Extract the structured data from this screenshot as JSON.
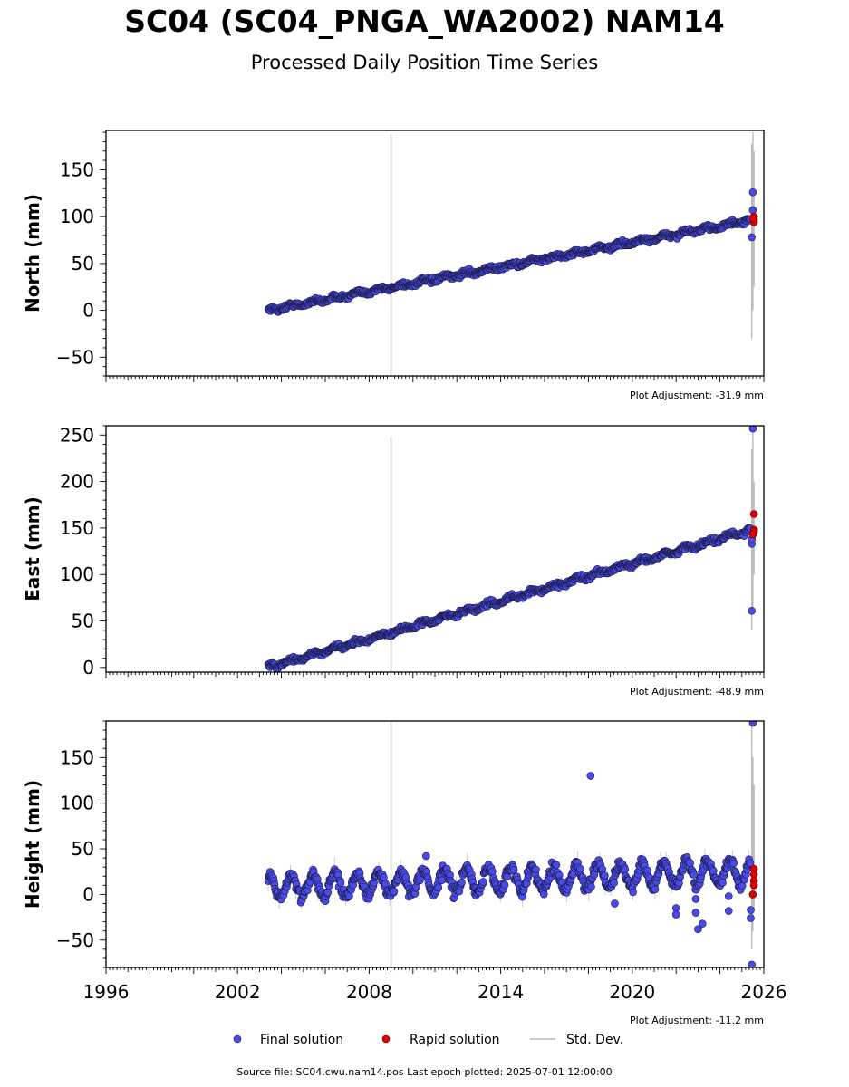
{
  "title": "SC04 (SC04_PNGA_WA2002) NAM14",
  "subtitle": "Processed Daily Position Time Series",
  "footer": "Source file: SC04.cwu.nam14.pos  Last epoch plotted: 2025-07-01 12:00:00",
  "colors": {
    "final": "#4a4ae8",
    "rapid": "#e00000",
    "stddev": "#cccccc",
    "edge": "#1a1a40"
  },
  "legend": {
    "final": "Final solution",
    "rapid": "Rapid solution",
    "stddev": "Std. Dev."
  },
  "chart_data": [
    {
      "type": "scatter",
      "id": "north",
      "ylabel": "North (mm)",
      "adjustment": "Plot Adjustment: -31.9 mm",
      "xlim": [
        1996.0,
        2026.0
      ],
      "ylim": [
        -70,
        192
      ],
      "yticks": [
        -50,
        0,
        50,
        100,
        150
      ],
      "trend": {
        "start": [
          2003.4,
          0
        ],
        "end": [
          2025.4,
          96
        ]
      },
      "seasonal_amp": 1.5,
      "noise": 2.5,
      "spike": {
        "x": 2009.0,
        "y0": -70,
        "y1": 188
      },
      "outliers": [
        [
          2025.5,
          126
        ],
        [
          2025.5,
          107
        ],
        [
          2025.45,
          78
        ]
      ],
      "rapid": [
        [
          2025.55,
          100
        ],
        [
          2025.55,
          97
        ],
        [
          2025.55,
          94
        ],
        [
          2025.5,
          98
        ]
      ],
      "end_stddev": [
        [
          2025.45,
          -30,
          178
        ],
        [
          2025.5,
          0,
          190
        ],
        [
          2025.55,
          25,
          170
        ]
      ]
    },
    {
      "type": "scatter",
      "id": "east",
      "ylabel": "East (mm)",
      "adjustment": "Plot Adjustment: -48.9 mm",
      "xlim": [
        1996.0,
        2026.0
      ],
      "ylim": [
        -5,
        260
      ],
      "yticks": [
        0,
        50,
        100,
        150,
        200,
        250
      ],
      "trend": {
        "start": [
          2003.4,
          0
        ],
        "end": [
          2025.4,
          148
        ]
      },
      "seasonal_amp": 1.8,
      "noise": 2.5,
      "spike": {
        "x": 2009.0,
        "y0": -5,
        "y1": 248
      },
      "outliers": [
        [
          2025.5,
          257
        ],
        [
          2025.45,
          61
        ],
        [
          2025.45,
          133
        ],
        [
          2025.45,
          138
        ]
      ],
      "rapid": [
        [
          2025.55,
          165
        ],
        [
          2025.55,
          148
        ],
        [
          2025.55,
          146
        ],
        [
          2025.5,
          143
        ]
      ],
      "end_stddev": [
        [
          2025.45,
          40,
          235
        ],
        [
          2025.5,
          60,
          255
        ],
        [
          2025.55,
          100,
          200
        ]
      ]
    },
    {
      "type": "scatter",
      "id": "height",
      "ylabel": "Height (mm)",
      "adjustment": "Plot Adjustment: -11.2 mm",
      "xlim": [
        1996.0,
        2026.0
      ],
      "ylim": [
        -80,
        190
      ],
      "yticks": [
        -50,
        0,
        50,
        100,
        150
      ],
      "xticks": [
        1996,
        2002,
        2008,
        2014,
        2020,
        2026
      ],
      "trend": {
        "start": [
          2003.4,
          8
        ],
        "end": [
          2025.4,
          25
        ]
      },
      "seasonal_amp": 13,
      "noise": 6,
      "spike": {
        "x": 2009.0,
        "y0": -80,
        "y1": 190
      },
      "outliers": [
        [
          2018.1,
          130
        ],
        [
          2010.6,
          42
        ],
        [
          2019.2,
          -10
        ],
        [
          2022.0,
          -15
        ],
        [
          2022.0,
          -22
        ],
        [
          2022.9,
          -5
        ],
        [
          2022.9,
          -20
        ],
        [
          2023.0,
          -38
        ],
        [
          2023.2,
          -32
        ],
        [
          2024.4,
          -2
        ],
        [
          2024.4,
          -18
        ],
        [
          2025.4,
          -17
        ],
        [
          2025.4,
          -26
        ],
        [
          2025.45,
          -77
        ],
        [
          2025.5,
          188
        ]
      ],
      "rapid": [
        [
          2025.55,
          28
        ],
        [
          2025.55,
          22
        ],
        [
          2025.55,
          15
        ],
        [
          2025.55,
          10
        ],
        [
          2025.5,
          0
        ]
      ],
      "end_stddev": [
        [
          2025.45,
          -60,
          185
        ],
        [
          2025.5,
          -40,
          150
        ],
        [
          2025.55,
          -20,
          120
        ]
      ]
    }
  ]
}
